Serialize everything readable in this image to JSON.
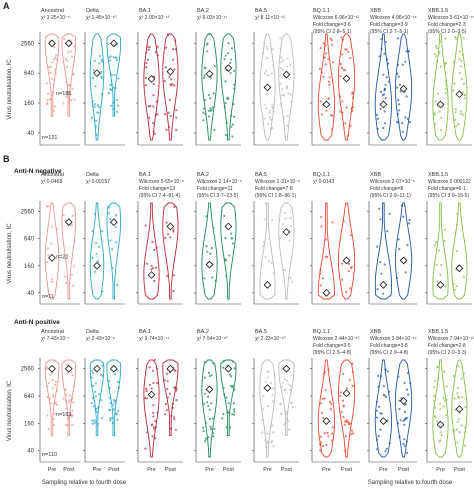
{
  "figure": {
    "panel_a_label": "A",
    "panel_b_label": "B",
    "y_axis_label": "Virus neutralisation, IC",
    "y_axis_label_sub": "50",
    "x_axis_label": "Sampling relative to fourth dose"
  },
  "chart_data": {
    "type": "violin",
    "yscale": "log",
    "yticks": [
      40,
      160,
      640,
      2560
    ],
    "ylim": [
      25,
      3600
    ],
    "groups": [
      "Pre",
      "Post"
    ],
    "variants": [
      "Ancestral",
      "Delta",
      "BA.1",
      "BA.2",
      "BA.5",
      "BQ.1.1",
      "XBB",
      "XBB.1.5"
    ],
    "colors": [
      "#e8998f",
      "#2aa7c9",
      "#b9293c",
      "#1f8a56",
      "#b8bdc2",
      "#e8472f",
      "#2457a6",
      "#86bf4a"
    ],
    "panels": [
      {
        "id": "A",
        "subtitle": "",
        "n_pre": "n=121",
        "n_post": "n=185",
        "stats": [
          {
            "line1": "χ² 3·25×10⁻⁵",
            "line2": "",
            "line3": ""
          },
          {
            "line1": "χ² 1·45×10⁻¹⁰",
            "line2": "",
            "line3": ""
          },
          {
            "line1": "χ² 2·00×10⁻¹³",
            "line2": "",
            "line3": ""
          },
          {
            "line1": "χ² 6·03×10⁻¹¹",
            "line2": "",
            "line3": ""
          },
          {
            "line1": "χ² 8·11×10⁻¹²",
            "line2": "",
            "line3": ""
          },
          {
            "line1": "Wilcoxon 6·96×10⁻¹²",
            "line2": "Fold change=3·6",
            "line3": "(95% CI 2·8–5·1)"
          },
          {
            "line1": "Wilcoxon 4·96×10⁻¹⁸",
            "line2": "Fold change=3·9",
            "line3": "(95% CI 2·7–5·1)"
          },
          {
            "line1": "Wilcoxon 3·61×10⁻¹⁵",
            "line2": "Fold change=2·3",
            "line3": "(95% CI 2·0–3·5)"
          }
        ],
        "medians": [
          [
            2560,
            2560
          ],
          [
            640,
            2560
          ],
          [
            490,
            690
          ],
          [
            620,
            810
          ],
          [
            330,
            600
          ],
          [
            150,
            500
          ],
          [
            150,
            310
          ],
          [
            150,
            240
          ]
        ]
      },
      {
        "id": "B1",
        "subtitle": "Anti-N negative",
        "n_pre": "n=11",
        "n_post": "n=22",
        "stats": [
          {
            "line1": "χ² 0·0468",
            "line2": "",
            "line3": ""
          },
          {
            "line1": "χ² 0·00157",
            "line2": "",
            "line3": ""
          },
          {
            "line1": "Wilcoxon 5·65×10⁻⁶",
            "line2": "Fold change=13",
            "line3": "(95% CI 7·4–81·4)"
          },
          {
            "line1": "Wilcoxon 2·14×10⁻⁵",
            "line2": "Fold change=11",
            "line3": "(95% CI 3·7–23·5)"
          },
          {
            "line1": "Wilcoxon 1·31×10⁻⁵",
            "line2": "Fold change=7·8",
            "line3": "(95% CI 1·8–96·1)"
          },
          {
            "line1": "χ² 0·0143",
            "line2": "",
            "line3": ""
          },
          {
            "line1": "Wilcoxon 2·07×10⁻⁵",
            "line2": "Fold change=8",
            "line3": "(95% CI 2·9–11·1)"
          },
          {
            "line1": "Wilcoxon 0·000122",
            "line2": "Fold change=6·1",
            "line3": "(95% CI 3·9–16·6)"
          }
        ],
        "medians": [
          [
            240,
            1500
          ],
          [
            160,
            1500
          ],
          [
            100,
            1200
          ],
          [
            170,
            1200
          ],
          [
            60,
            900
          ],
          [
            40,
            210
          ],
          [
            60,
            210
          ],
          [
            60,
            140
          ]
        ]
      },
      {
        "id": "B2",
        "subtitle": "Anti-N positive",
        "n_pre": "n=110",
        "n_post": "n=163",
        "stats": [
          {
            "line1": "χ² 7·43×10⁻⁷",
            "line2": "",
            "line3": ""
          },
          {
            "line1": "χ² 2·43×10⁻⁸",
            "line2": "",
            "line3": ""
          },
          {
            "line1": "χ² 9·74×10⁻¹¹",
            "line2": "",
            "line3": ""
          },
          {
            "line1": "χ² 7·54×10⁻¹⁰",
            "line2": "",
            "line3": ""
          },
          {
            "line1": "χ² 2·23×10⁻¹⁰",
            "line2": "",
            "line3": ""
          },
          {
            "line1": "Wilcoxon 2·44×10⁻¹⁰",
            "line2": "Fold change=3·5",
            "line3": "(95% CI 2·5–4·8)"
          },
          {
            "line1": "Wilcoxon 3·84×10⁻¹⁴",
            "line2": "Fold change=3·8",
            "line3": "(95% CI 2·9–4·8)"
          },
          {
            "line1": "Wilcoxon 7·94×10⁻¹²",
            "line2": "Fold change=2·8",
            "line3": "(95% CI 2·0–3·3)"
          }
        ],
        "medians": [
          [
            2560,
            2560
          ],
          [
            2560,
            2560
          ],
          [
            690,
            2560
          ],
          [
            900,
            2560
          ],
          [
            960,
            2560
          ],
          [
            180,
            740
          ],
          [
            180,
            500
          ],
          [
            150,
            330
          ]
        ]
      }
    ]
  }
}
